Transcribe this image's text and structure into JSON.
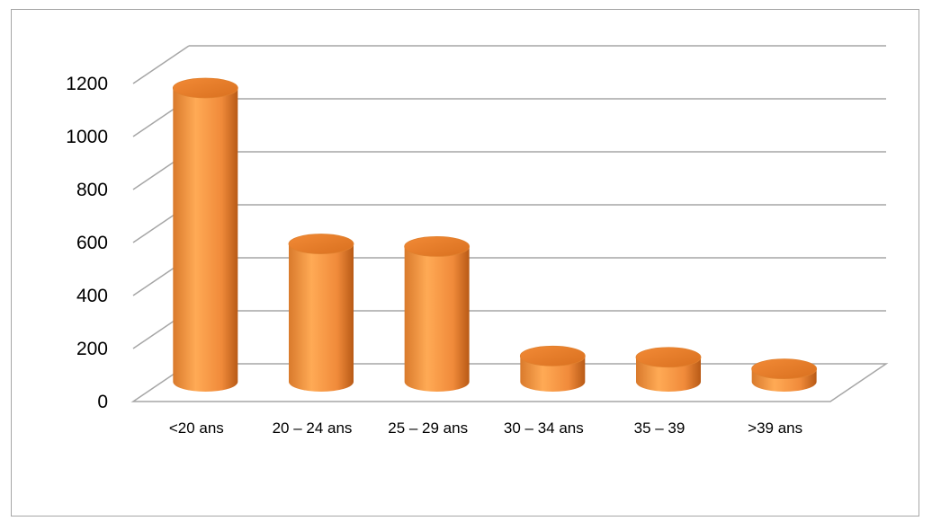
{
  "chart_data": {
    "type": "bar",
    "style": "3d-cylinder",
    "categories": [
      "<20 ans",
      "20 – 24 ans",
      "25 – 29 ans",
      "30 – 34 ans",
      "35 – 39",
      ">39 ans"
    ],
    "values": [
      1140,
      535,
      525,
      100,
      95,
      50
    ],
    "yticks": [
      "0",
      "200",
      "400",
      "600",
      "800",
      "1000",
      "1200"
    ],
    "ylim": [
      0,
      1200
    ],
    "grid": true,
    "legend": "none",
    "colors": {
      "bar_light": "#ffaa55",
      "bar_mid": "#f79646",
      "bar_dark": "#c8651a",
      "grid": "#a6a6a6",
      "frame": "#a6a6a6"
    }
  }
}
